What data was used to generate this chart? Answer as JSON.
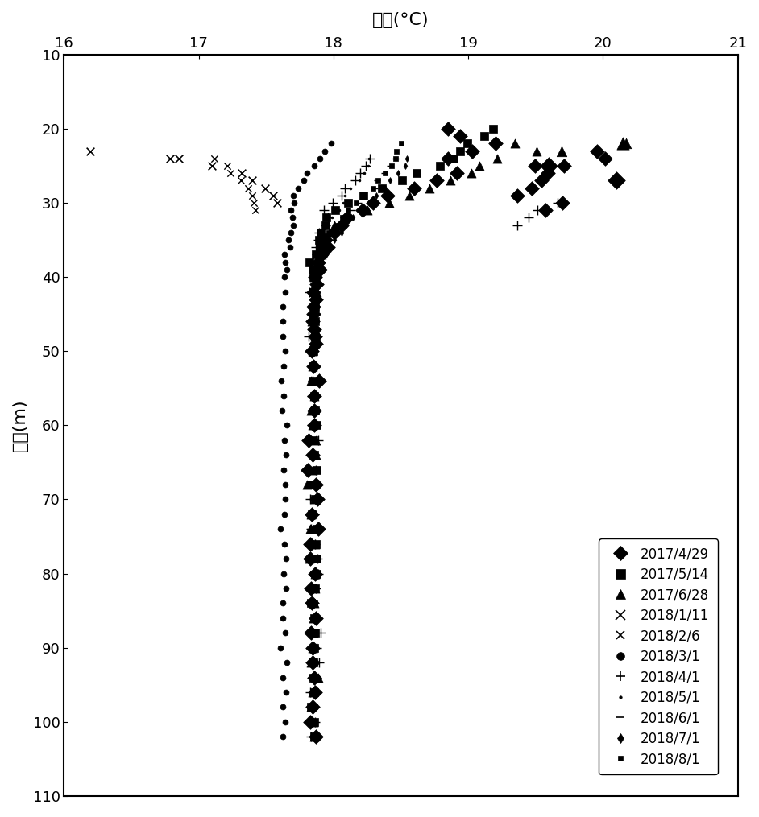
{
  "title": "温度(°C)",
  "ylabel": "深度(m)",
  "xlim": [
    16,
    21
  ],
  "ylim": [
    10,
    110
  ],
  "xticks": [
    16,
    17,
    18,
    19,
    20,
    21
  ],
  "yticks": [
    10,
    20,
    30,
    40,
    50,
    60,
    70,
    80,
    90,
    100,
    110
  ],
  "color": "#000000",
  "bg": "#ffffff",
  "legend_entries": [
    {
      "label": "2017/4/29",
      "marker": "D",
      "ms": 9
    },
    {
      "label": "2017/5/14",
      "marker": "s",
      "ms": 8
    },
    {
      "label": "2017/6/28",
      "marker": "^",
      "ms": 9
    },
    {
      "label": "2018/1/11",
      "marker": "x",
      "ms": 8
    },
    {
      "label": "2018/2/6",
      "marker": "x",
      "ms": 7
    },
    {
      "label": "2018/3/1",
      "marker": "o",
      "ms": 7
    },
    {
      "label": "2018/4/1",
      "marker": "+",
      "ms": 9
    },
    {
      "label": "2018/5/1",
      "marker": ".",
      "ms": 5
    },
    {
      "label": "2018/6/1",
      "marker": "_",
      "ms": 7
    },
    {
      "label": "2018/7/1",
      "marker": "d",
      "ms": 6
    },
    {
      "label": "2018/8/1",
      "marker": "s",
      "ms": 5
    }
  ],
  "series_2017_4_29": {
    "depths": [
      20,
      21,
      22,
      23,
      24,
      25,
      26,
      27,
      28,
      29,
      30,
      31,
      32,
      33,
      34,
      35,
      36,
      37,
      38,
      39,
      40,
      41,
      42,
      43,
      44,
      45,
      46,
      47,
      48,
      49,
      50,
      52,
      54,
      56,
      58,
      60,
      62,
      64,
      66,
      68,
      70,
      72,
      74,
      76,
      78,
      80,
      82,
      84,
      86,
      88,
      90,
      92,
      94,
      96,
      98,
      100,
      102
    ],
    "temps": [
      18.85,
      18.9,
      19.2,
      19.0,
      18.85,
      19.5,
      18.9,
      18.75,
      18.6,
      18.45,
      18.3,
      18.2,
      18.1,
      18.05,
      18.0,
      17.97,
      17.94,
      17.92,
      17.9,
      17.89,
      17.88,
      17.87,
      17.87,
      17.87,
      17.86,
      17.86,
      17.86,
      17.86,
      17.86,
      17.85,
      17.85,
      17.85,
      17.85,
      17.85,
      17.85,
      17.85,
      17.85,
      17.85,
      17.85,
      17.85,
      17.85,
      17.85,
      17.85,
      17.85,
      17.85,
      17.85,
      17.85,
      17.85,
      17.85,
      17.85,
      17.85,
      17.85,
      17.85,
      17.85,
      17.85,
      17.85,
      17.85
    ],
    "extra_T": [
      19.9,
      20.0,
      19.7,
      19.6,
      19.55,
      19.5,
      19.35,
      19.7,
      19.55
    ],
    "extra_D": [
      23,
      24,
      25,
      26,
      27,
      28,
      29,
      30,
      31
    ]
  },
  "series_2017_5_14": {
    "depths": [
      20,
      21,
      22,
      23,
      24,
      25,
      26,
      27,
      28,
      29,
      30,
      31,
      32,
      33,
      34,
      35,
      36,
      37,
      38,
      39,
      40,
      42,
      44,
      46,
      48,
      50,
      52,
      54,
      56,
      58,
      60,
      62,
      64,
      66,
      68,
      70,
      72,
      74,
      76,
      78,
      80,
      82,
      84,
      86,
      88,
      90,
      92,
      94,
      96,
      98,
      100,
      102
    ],
    "temps": [
      19.2,
      19.1,
      19.0,
      18.95,
      18.9,
      18.8,
      18.65,
      18.5,
      18.35,
      18.2,
      18.1,
      18.0,
      17.97,
      17.94,
      17.92,
      17.9,
      17.88,
      17.87,
      17.86,
      17.86,
      17.86,
      17.85,
      17.85,
      17.85,
      17.85,
      17.85,
      17.85,
      17.85,
      17.85,
      17.85,
      17.85,
      17.85,
      17.85,
      17.85,
      17.85,
      17.85,
      17.85,
      17.85,
      17.85,
      17.85,
      17.85,
      17.85,
      17.85,
      17.85,
      17.85,
      17.85,
      17.85,
      17.85,
      17.85,
      17.85,
      17.85,
      17.85
    ]
  },
  "series_2017_6_28": {
    "depths": [
      22,
      23,
      24,
      25,
      26,
      27,
      28,
      29,
      30,
      31,
      32,
      33,
      34,
      35,
      36,
      37,
      38,
      39,
      40,
      42,
      44,
      46,
      48,
      50,
      52,
      54,
      56,
      58,
      60,
      62,
      64,
      66,
      68,
      70,
      72,
      74,
      76,
      78,
      80,
      82,
      84,
      86,
      88,
      90,
      92,
      94,
      96,
      98,
      100,
      102
    ],
    "temps": [
      19.35,
      19.5,
      19.2,
      19.1,
      19.0,
      18.85,
      18.7,
      18.55,
      18.4,
      18.25,
      18.1,
      18.0,
      17.97,
      17.94,
      17.92,
      17.9,
      17.89,
      17.88,
      17.87,
      17.87,
      17.86,
      17.86,
      17.86,
      17.85,
      17.85,
      17.85,
      17.85,
      17.85,
      17.85,
      17.85,
      17.85,
      17.85,
      17.85,
      17.85,
      17.85,
      17.85,
      17.85,
      17.85,
      17.85,
      17.85,
      17.85,
      17.85,
      17.85,
      17.85,
      17.85,
      17.85,
      17.85,
      17.85,
      17.85,
      17.85
    ],
    "extra_T": [
      20.15,
      19.7
    ],
    "extra_D": [
      22,
      23
    ]
  },
  "series_2018_1_11": {
    "depths": [
      23,
      24,
      25,
      26,
      27,
      28,
      29,
      30
    ],
    "temps": [
      16.2,
      16.8,
      17.1,
      17.3,
      17.4,
      17.5,
      17.55,
      17.6
    ]
  },
  "series_2018_2_6": {
    "depths": [
      24,
      25,
      26,
      27,
      28,
      29,
      30,
      31
    ],
    "temps": [
      17.15,
      17.22,
      17.28,
      17.32,
      17.36,
      17.38,
      17.4,
      17.42
    ]
  },
  "series_2018_3_1": {
    "depths": [
      22,
      23,
      24,
      25,
      26,
      27,
      28,
      29,
      30,
      31,
      32,
      33,
      34,
      35,
      36,
      37,
      38,
      39,
      40,
      42,
      44,
      46,
      48,
      50,
      52,
      54,
      56,
      58,
      60,
      62,
      64,
      66,
      68,
      70,
      72,
      74,
      76,
      78,
      80,
      82,
      84,
      86,
      88,
      90,
      92,
      94,
      96,
      98,
      100,
      102
    ],
    "temps": [
      18.0,
      17.95,
      17.9,
      17.87,
      17.82,
      17.78,
      17.75,
      17.73,
      17.71,
      17.7,
      17.69,
      17.68,
      17.67,
      17.66,
      17.66,
      17.65,
      17.65,
      17.65,
      17.64,
      17.64,
      17.63,
      17.63,
      17.63,
      17.63,
      17.63,
      17.63,
      17.63,
      17.63,
      17.63,
      17.63,
      17.63,
      17.63,
      17.63,
      17.63,
      17.63,
      17.63,
      17.63,
      17.63,
      17.63,
      17.63,
      17.63,
      17.63,
      17.63,
      17.63,
      17.63,
      17.63,
      17.63,
      17.63,
      17.63,
      17.63
    ]
  },
  "series_2018_4_1": {
    "depths": [
      24,
      25,
      26,
      27,
      28,
      29,
      30,
      31,
      32,
      33,
      34,
      35,
      36,
      37,
      38,
      39,
      40,
      42,
      44,
      46,
      48,
      50,
      52,
      54,
      56,
      58,
      60,
      62,
      64,
      66,
      68,
      70,
      72,
      74,
      76,
      78,
      80,
      82,
      84,
      86,
      88,
      90,
      92,
      94,
      96,
      98,
      100,
      102
    ],
    "temps": [
      18.3,
      18.25,
      18.2,
      18.15,
      18.1,
      18.05,
      18.0,
      17.97,
      17.94,
      17.92,
      17.9,
      17.89,
      17.88,
      17.87,
      17.86,
      17.86,
      17.86,
      17.85,
      17.85,
      17.85,
      17.85,
      17.85,
      17.85,
      17.85,
      17.85,
      17.85,
      17.85,
      17.85,
      17.85,
      17.85,
      17.85,
      17.85,
      17.85,
      17.85,
      17.85,
      17.85,
      17.85,
      17.85,
      17.85,
      17.85,
      17.85,
      17.85,
      17.85,
      17.85,
      17.85,
      17.85,
      17.85,
      17.85
    ],
    "extra_T": [
      19.65,
      19.55,
      19.45,
      19.35
    ],
    "extra_D": [
      30,
      31,
      32,
      33
    ]
  },
  "series_2018_5_1": {
    "depths": [
      24,
      25,
      26,
      27,
      28,
      29,
      30,
      31,
      32,
      33,
      34,
      35,
      36,
      37,
      38,
      39,
      40,
      42,
      44,
      46,
      48,
      50,
      52,
      54,
      56,
      58,
      60,
      62,
      64,
      66,
      68,
      70,
      72,
      74,
      76,
      78,
      80,
      82,
      84,
      86,
      88,
      90,
      92,
      94,
      96,
      98,
      100,
      102
    ],
    "temps": [
      18.28,
      18.25,
      18.22,
      18.18,
      18.14,
      18.1,
      18.06,
      18.03,
      18.0,
      17.98,
      17.96,
      17.94,
      17.93,
      17.92,
      17.91,
      17.9,
      17.89,
      17.88,
      17.87,
      17.86,
      17.86,
      17.85,
      17.85,
      17.85,
      17.85,
      17.85,
      17.85,
      17.85,
      17.85,
      17.85,
      17.85,
      17.85,
      17.85,
      17.85,
      17.85,
      17.85,
      17.85,
      17.85,
      17.85,
      17.85,
      17.85,
      17.85,
      17.85,
      17.85,
      17.85,
      17.85,
      17.85,
      17.85
    ]
  },
  "series_2018_6_1": {
    "depths": [
      24,
      25,
      26,
      27,
      28,
      29,
      30,
      31,
      32,
      33,
      34,
      35,
      36,
      37,
      38,
      39,
      40,
      42,
      44,
      46,
      48,
      50,
      52,
      54,
      56,
      58,
      60,
      62,
      64,
      66,
      68,
      70,
      72,
      74,
      76,
      78,
      80,
      82,
      84,
      86,
      88,
      90,
      92,
      94,
      96,
      98,
      100,
      102
    ],
    "temps": [
      18.45,
      18.42,
      18.38,
      18.33,
      18.28,
      18.23,
      18.18,
      18.13,
      18.08,
      18.04,
      18.0,
      17.97,
      17.94,
      17.92,
      17.91,
      17.9,
      17.89,
      17.88,
      17.87,
      17.86,
      17.86,
      17.85,
      17.85,
      17.85,
      17.85,
      17.85,
      17.85,
      17.85,
      17.85,
      17.85,
      17.85,
      17.85,
      17.85,
      17.85,
      17.85,
      17.85,
      17.85,
      17.85,
      17.85,
      17.85,
      17.85,
      17.85,
      17.85,
      17.85,
      17.85,
      17.85,
      17.85,
      17.85
    ]
  },
  "series_2018_7_1": {
    "depths": [
      24,
      25,
      26,
      27,
      28,
      29,
      30,
      31,
      32,
      33,
      34,
      35,
      36,
      37,
      38,
      39,
      40,
      42,
      44,
      46,
      48,
      50,
      52,
      54,
      56,
      58,
      60,
      62,
      64,
      66,
      68,
      70,
      72,
      74,
      76,
      78,
      80,
      82,
      84,
      86,
      88,
      90,
      92,
      94,
      96,
      98,
      100,
      102
    ],
    "temps": [
      18.55,
      18.52,
      18.48,
      18.43,
      18.38,
      18.32,
      18.26,
      18.2,
      18.14,
      18.09,
      18.04,
      18.0,
      17.97,
      17.94,
      17.92,
      17.9,
      17.89,
      17.88,
      17.87,
      17.86,
      17.86,
      17.85,
      17.85,
      17.85,
      17.85,
      17.85,
      17.85,
      17.85,
      17.85,
      17.85,
      17.85,
      17.85,
      17.85,
      17.85,
      17.85,
      17.85,
      17.85,
      17.85,
      17.85,
      17.85,
      17.85,
      17.85,
      17.85,
      17.85,
      17.85,
      17.85,
      17.85,
      17.85
    ]
  },
  "series_2018_8_1": {
    "depths": [
      22,
      23,
      24,
      25,
      26,
      27,
      28,
      29,
      30,
      31,
      32,
      33,
      34,
      35,
      36,
      37,
      38,
      39,
      40,
      42,
      44,
      46,
      48,
      50,
      52,
      54,
      56,
      58,
      60,
      62,
      64,
      66,
      68,
      70,
      72,
      74,
      76,
      78,
      80,
      82,
      84,
      86,
      88,
      90,
      92,
      94,
      96,
      98,
      100,
      102
    ],
    "temps": [
      18.5,
      18.48,
      18.45,
      18.42,
      18.38,
      18.33,
      18.28,
      18.22,
      18.17,
      18.11,
      18.06,
      18.01,
      17.97,
      17.94,
      17.92,
      17.9,
      17.89,
      17.88,
      17.87,
      17.86,
      17.86,
      17.85,
      17.85,
      17.85,
      17.85,
      17.85,
      17.85,
      17.85,
      17.85,
      17.85,
      17.85,
      17.85,
      17.85,
      17.85,
      17.85,
      17.85,
      17.85,
      17.85,
      17.85,
      17.85,
      17.85,
      17.85,
      17.85,
      17.85,
      17.85,
      17.85,
      17.85,
      17.85,
      17.85,
      17.85
    ]
  }
}
